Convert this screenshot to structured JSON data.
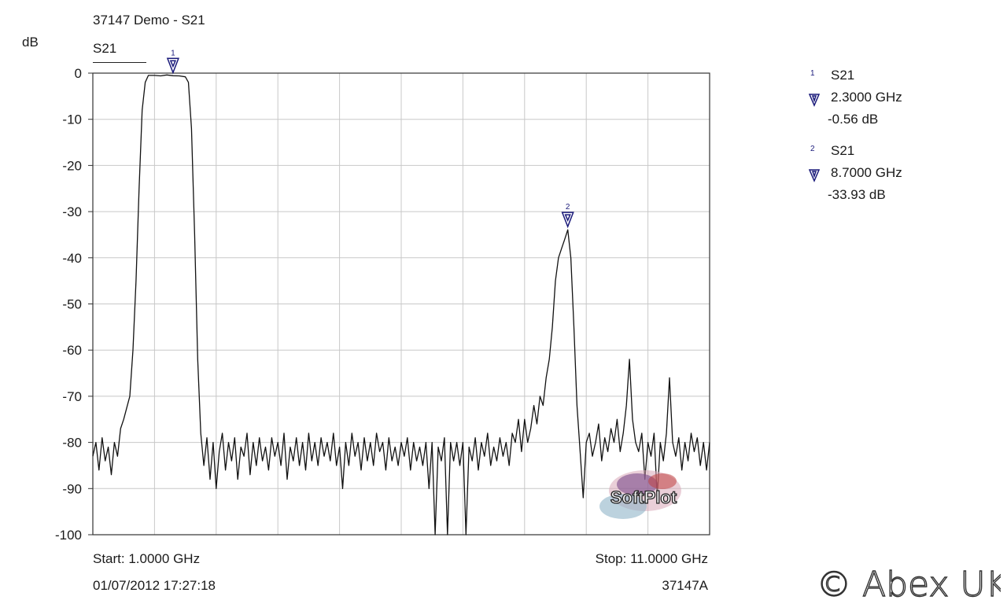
{
  "title": "37147 Demo - S21",
  "y_unit": "dB",
  "legend_trace": "S21",
  "start_label": "Start: 1.0000 GHz",
  "stop_label": "Stop: 11.0000 GHz",
  "timestamp": "01/07/2012 17:27:18",
  "instrument": "37147A",
  "watermark_text": "SoftPlot",
  "brand_text": "© Abex UK",
  "markers": [
    {
      "num": "1",
      "trace": "S21",
      "freq": "2.3000 GHz",
      "value": "-0.56 dB"
    },
    {
      "num": "2",
      "trace": "S21",
      "freq": "8.7000 GHz",
      "value": "-33.93 dB"
    }
  ],
  "colors": {
    "trace": "#111111",
    "grid": "#c8c8c8",
    "axis": "#333333",
    "marker": "#1a1a7a"
  },
  "chart_data": {
    "type": "line",
    "title": "37147 Demo - S21",
    "xlabel": "",
    "ylabel": "dB",
    "xlim": [
      1.0,
      11.0
    ],
    "ylim": [
      -100,
      0
    ],
    "y_ticks": [
      0,
      -10,
      -20,
      -30,
      -40,
      -50,
      -60,
      -70,
      -80,
      -90,
      -100
    ],
    "x_grid_divisions": 10,
    "grid": true,
    "series": [
      {
        "name": "S21",
        "x_unit": "GHz",
        "points": [
          [
            1.0,
            -83
          ],
          [
            1.05,
            -80
          ],
          [
            1.1,
            -86
          ],
          [
            1.15,
            -79
          ],
          [
            1.2,
            -84
          ],
          [
            1.25,
            -81
          ],
          [
            1.3,
            -87
          ],
          [
            1.35,
            -80
          ],
          [
            1.4,
            -83
          ],
          [
            1.45,
            -77
          ],
          [
            1.5,
            -75
          ],
          [
            1.6,
            -70
          ],
          [
            1.65,
            -60
          ],
          [
            1.7,
            -45
          ],
          [
            1.75,
            -25
          ],
          [
            1.8,
            -8
          ],
          [
            1.85,
            -2
          ],
          [
            1.9,
            -0.5
          ],
          [
            2.0,
            -0.5
          ],
          [
            2.1,
            -0.6
          ],
          [
            2.2,
            -0.4
          ],
          [
            2.3,
            -0.56
          ],
          [
            2.4,
            -0.6
          ],
          [
            2.5,
            -0.8
          ],
          [
            2.55,
            -2
          ],
          [
            2.6,
            -12
          ],
          [
            2.65,
            -35
          ],
          [
            2.7,
            -62
          ],
          [
            2.75,
            -78
          ],
          [
            2.8,
            -85
          ],
          [
            2.85,
            -79
          ],
          [
            2.9,
            -88
          ],
          [
            2.95,
            -80
          ],
          [
            3.0,
            -90
          ],
          [
            3.05,
            -82
          ],
          [
            3.1,
            -78
          ],
          [
            3.15,
            -86
          ],
          [
            3.2,
            -80
          ],
          [
            3.25,
            -84
          ],
          [
            3.3,
            -79
          ],
          [
            3.35,
            -88
          ],
          [
            3.4,
            -81
          ],
          [
            3.45,
            -83
          ],
          [
            3.5,
            -78
          ],
          [
            3.55,
            -87
          ],
          [
            3.6,
            -80
          ],
          [
            3.65,
            -85
          ],
          [
            3.7,
            -79
          ],
          [
            3.75,
            -84
          ],
          [
            3.8,
            -81
          ],
          [
            3.85,
            -86
          ],
          [
            3.9,
            -79
          ],
          [
            3.95,
            -83
          ],
          [
            4.0,
            -80
          ],
          [
            4.05,
            -85
          ],
          [
            4.1,
            -78
          ],
          [
            4.15,
            -88
          ],
          [
            4.2,
            -81
          ],
          [
            4.25,
            -84
          ],
          [
            4.3,
            -79
          ],
          [
            4.35,
            -85
          ],
          [
            4.4,
            -80
          ],
          [
            4.45,
            -86
          ],
          [
            4.5,
            -78
          ],
          [
            4.55,
            -84
          ],
          [
            4.6,
            -80
          ],
          [
            4.65,
            -85
          ],
          [
            4.7,
            -79
          ],
          [
            4.75,
            -83
          ],
          [
            4.8,
            -80
          ],
          [
            4.85,
            -84
          ],
          [
            4.9,
            -78
          ],
          [
            4.95,
            -85
          ],
          [
            5.0,
            -81
          ],
          [
            5.05,
            -90
          ],
          [
            5.1,
            -80
          ],
          [
            5.15,
            -85
          ],
          [
            5.2,
            -78
          ],
          [
            5.25,
            -83
          ],
          [
            5.3,
            -80
          ],
          [
            5.35,
            -86
          ],
          [
            5.4,
            -79
          ],
          [
            5.45,
            -84
          ],
          [
            5.5,
            -80
          ],
          [
            5.55,
            -85
          ],
          [
            5.6,
            -78
          ],
          [
            5.65,
            -82
          ],
          [
            5.7,
            -80
          ],
          [
            5.75,
            -86
          ],
          [
            5.8,
            -79
          ],
          [
            5.85,
            -84
          ],
          [
            5.9,
            -81
          ],
          [
            5.95,
            -85
          ],
          [
            6.0,
            -80
          ],
          [
            6.05,
            -83
          ],
          [
            6.1,
            -79
          ],
          [
            6.15,
            -86
          ],
          [
            6.2,
            -80
          ],
          [
            6.25,
            -84
          ],
          [
            6.3,
            -81
          ],
          [
            6.35,
            -85
          ],
          [
            6.4,
            -80
          ],
          [
            6.45,
            -90
          ],
          [
            6.5,
            -80
          ],
          [
            6.55,
            -100
          ],
          [
            6.6,
            -81
          ],
          [
            6.65,
            -84
          ],
          [
            6.7,
            -79
          ],
          [
            6.75,
            -100
          ],
          [
            6.8,
            -80
          ],
          [
            6.85,
            -84
          ],
          [
            6.9,
            -80
          ],
          [
            6.95,
            -85
          ],
          [
            7.0,
            -80
          ],
          [
            7.05,
            -100
          ],
          [
            7.1,
            -81
          ],
          [
            7.15,
            -84
          ],
          [
            7.2,
            -79
          ],
          [
            7.25,
            -86
          ],
          [
            7.3,
            -80
          ],
          [
            7.35,
            -83
          ],
          [
            7.4,
            -78
          ],
          [
            7.45,
            -85
          ],
          [
            7.5,
            -81
          ],
          [
            7.55,
            -84
          ],
          [
            7.6,
            -79
          ],
          [
            7.65,
            -83
          ],
          [
            7.7,
            -80
          ],
          [
            7.75,
            -85
          ],
          [
            7.8,
            -78
          ],
          [
            7.85,
            -80
          ],
          [
            7.9,
            -75
          ],
          [
            7.95,
            -82
          ],
          [
            8.0,
            -75
          ],
          [
            8.05,
            -80
          ],
          [
            8.1,
            -77
          ],
          [
            8.15,
            -72
          ],
          [
            8.2,
            -76
          ],
          [
            8.25,
            -70
          ],
          [
            8.3,
            -72
          ],
          [
            8.35,
            -66
          ],
          [
            8.4,
            -62
          ],
          [
            8.45,
            -55
          ],
          [
            8.5,
            -45
          ],
          [
            8.55,
            -40
          ],
          [
            8.6,
            -38
          ],
          [
            8.65,
            -36
          ],
          [
            8.7,
            -33.93
          ],
          [
            8.75,
            -40
          ],
          [
            8.8,
            -55
          ],
          [
            8.85,
            -72
          ],
          [
            8.9,
            -82
          ],
          [
            8.95,
            -92
          ],
          [
            9.0,
            -80
          ],
          [
            9.05,
            -78
          ],
          [
            9.1,
            -83
          ],
          [
            9.15,
            -80
          ],
          [
            9.2,
            -76
          ],
          [
            9.25,
            -84
          ],
          [
            9.3,
            -79
          ],
          [
            9.35,
            -82
          ],
          [
            9.4,
            -77
          ],
          [
            9.45,
            -80
          ],
          [
            9.5,
            -75
          ],
          [
            9.55,
            -82
          ],
          [
            9.6,
            -78
          ],
          [
            9.65,
            -72
          ],
          [
            9.7,
            -62
          ],
          [
            9.75,
            -75
          ],
          [
            9.8,
            -80
          ],
          [
            9.85,
            -82
          ],
          [
            9.9,
            -78
          ],
          [
            9.95,
            -88
          ],
          [
            10.0,
            -80
          ],
          [
            10.05,
            -83
          ],
          [
            10.1,
            -78
          ],
          [
            10.15,
            -92
          ],
          [
            10.2,
            -80
          ],
          [
            10.25,
            -84
          ],
          [
            10.3,
            -78
          ],
          [
            10.35,
            -66
          ],
          [
            10.4,
            -80
          ],
          [
            10.45,
            -83
          ],
          [
            10.5,
            -79
          ],
          [
            10.55,
            -86
          ],
          [
            10.6,
            -80
          ],
          [
            10.65,
            -84
          ],
          [
            10.7,
            -78
          ],
          [
            10.75,
            -82
          ],
          [
            10.8,
            -79
          ],
          [
            10.85,
            -85
          ],
          [
            10.9,
            -80
          ],
          [
            10.95,
            -86
          ],
          [
            11.0,
            -80
          ]
        ]
      }
    ],
    "markers": [
      {
        "num": 1,
        "x": 2.3,
        "y": -0.56
      },
      {
        "num": 2,
        "x": 8.7,
        "y": -33.93
      }
    ]
  }
}
